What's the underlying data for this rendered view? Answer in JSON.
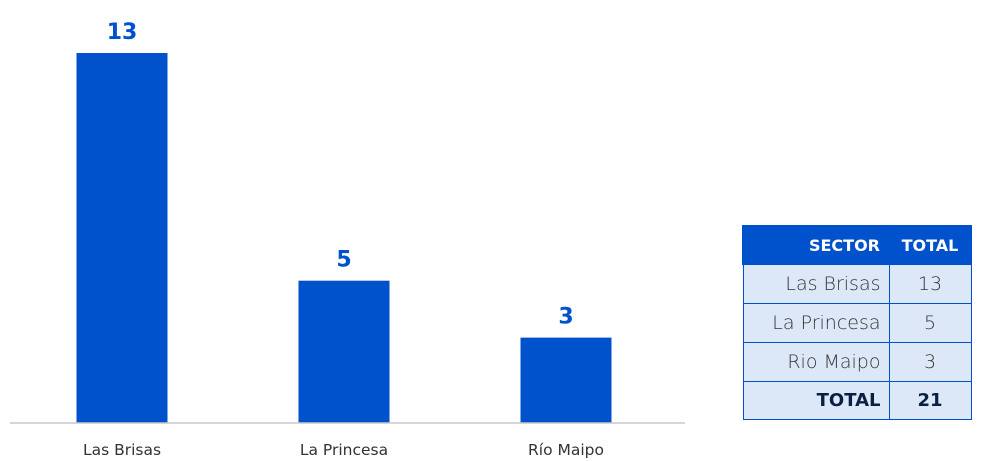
{
  "chart_data": {
    "type": "bar",
    "categories": [
      "Las Brisas",
      "La Princesa",
      "Río Maipo"
    ],
    "values": [
      13,
      5,
      3
    ],
    "title": "",
    "xlabel": "",
    "ylabel": "",
    "ylim": [
      0,
      13
    ],
    "grid": false,
    "legend": "none"
  },
  "colors": {
    "bar": "#0052CC",
    "value_label": "#0052CC",
    "table_header_bg": "#0052CC",
    "table_header_text": "#FFFFFF",
    "table_row_bg": "#DCE8F8",
    "table_border": "#0050CC"
  },
  "table": {
    "headers": {
      "sector": "SECTOR",
      "total": "TOTAL"
    },
    "rows": [
      {
        "sector": "Las Brisas",
        "total": "13"
      },
      {
        "sector": "La Princesa",
        "total": "5"
      },
      {
        "sector": "Rio Maipo",
        "total": "3"
      }
    ],
    "footer": {
      "label": "TOTAL",
      "value": "21"
    }
  }
}
